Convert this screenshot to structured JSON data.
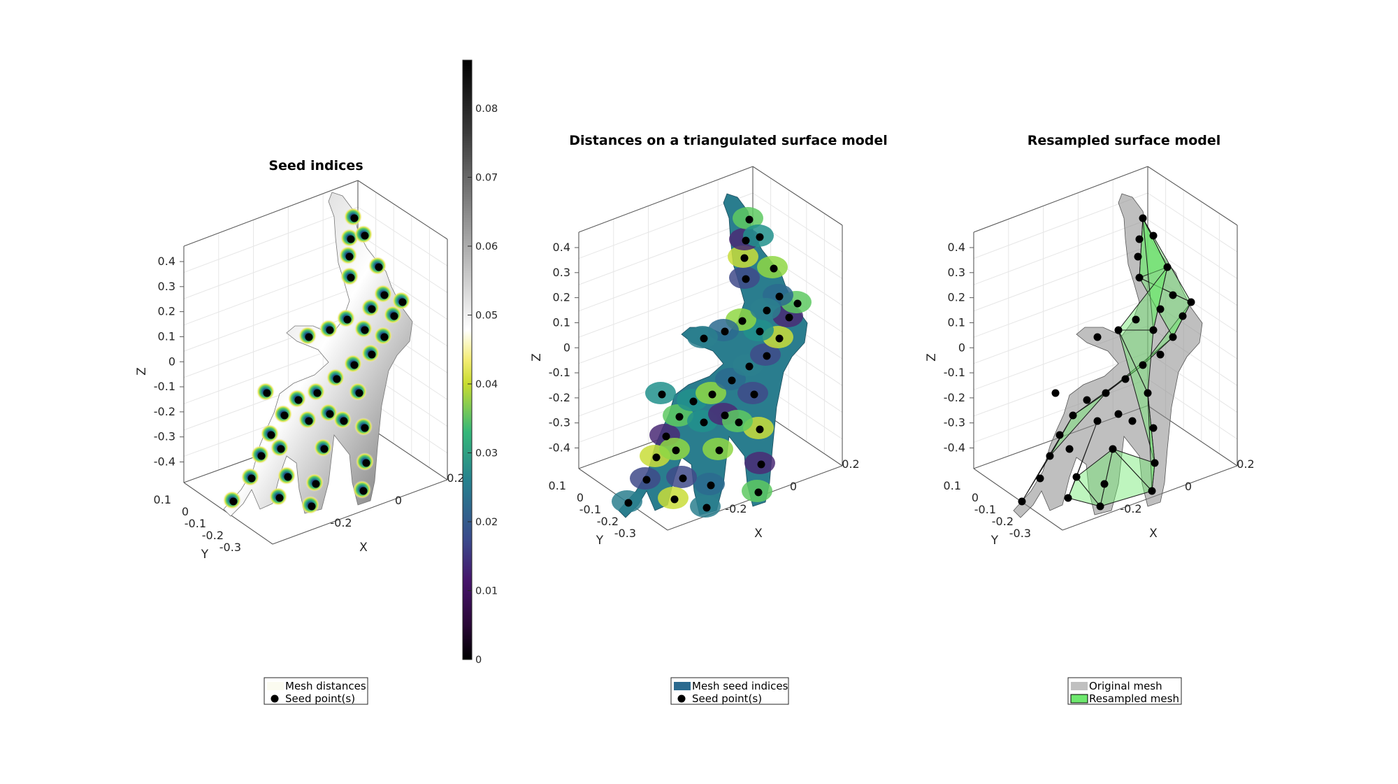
{
  "colorbar": {
    "ticks": [
      "0",
      "0.01",
      "0.02",
      "0.03",
      "0.04",
      "0.05",
      "0.06",
      "0.07",
      "0.08"
    ],
    "colormap": [
      "#000000",
      "#3b0f54",
      "#3a5a8c",
      "#26828e",
      "#35b779",
      "#d6e02a",
      "#ffffff",
      "#8c8c8c",
      "#000000"
    ]
  },
  "chart_data": [
    {
      "type": "surface-3d",
      "title": "Seed indices",
      "xlabel": "X",
      "ylabel": "Y",
      "zlabel": "Z",
      "xticks": [
        "-0.2",
        "0",
        "0.2"
      ],
      "yticks": [
        "0.1",
        "0",
        "-0.1",
        "-0.2",
        "-0.3"
      ],
      "zticks": [
        "0.4",
        "0.3",
        "0.2",
        "0.1",
        "0",
        "-0.1",
        "-0.2",
        "-0.3",
        "-0.4"
      ],
      "grid": true,
      "legend": [
        {
          "label": "Mesh distances",
          "swatch": "#fbfbf0"
        },
        {
          "label": "Seed point(s)",
          "swatch": "#000000",
          "marker": "dot"
        }
      ],
      "legend_placement": "bottom"
    },
    {
      "type": "surface-3d",
      "title": "Distances on a triangulated surface model",
      "xlabel": "X",
      "ylabel": "Y",
      "zlabel": "Z",
      "xticks": [
        "-0.2",
        "0",
        "0.2"
      ],
      "yticks": [
        "0.1",
        "0",
        "-0.1",
        "-0.2",
        "-0.3"
      ],
      "zticks": [
        "0.4",
        "0.3",
        "0.2",
        "0.1",
        "0",
        "-0.1",
        "-0.2",
        "-0.3",
        "-0.4"
      ],
      "grid": true,
      "legend": [
        {
          "label": "Mesh seed indices",
          "swatch": "#2b6a8f"
        },
        {
          "label": "Seed point(s)",
          "swatch": "#000000",
          "marker": "dot"
        }
      ],
      "legend_placement": "bottom"
    },
    {
      "type": "surface-3d",
      "title": "Resampled surface model",
      "xlabel": "X",
      "ylabel": "Y",
      "zlabel": "Z",
      "xticks": [
        "-0.2",
        "0",
        "0.2"
      ],
      "yticks": [
        "0.1",
        "0",
        "-0.1",
        "-0.2",
        "-0.3"
      ],
      "zticks": [
        "0.4",
        "0.3",
        "0.2",
        "0.1",
        "0",
        "-0.1",
        "-0.2",
        "-0.3",
        "-0.4"
      ],
      "grid": true,
      "legend": [
        {
          "label": "Original mesh",
          "swatch": "#c0c0c0"
        },
        {
          "label": "Resampled mesh",
          "swatch": "#6ee86e"
        }
      ],
      "legend_placement": "bottom"
    }
  ]
}
